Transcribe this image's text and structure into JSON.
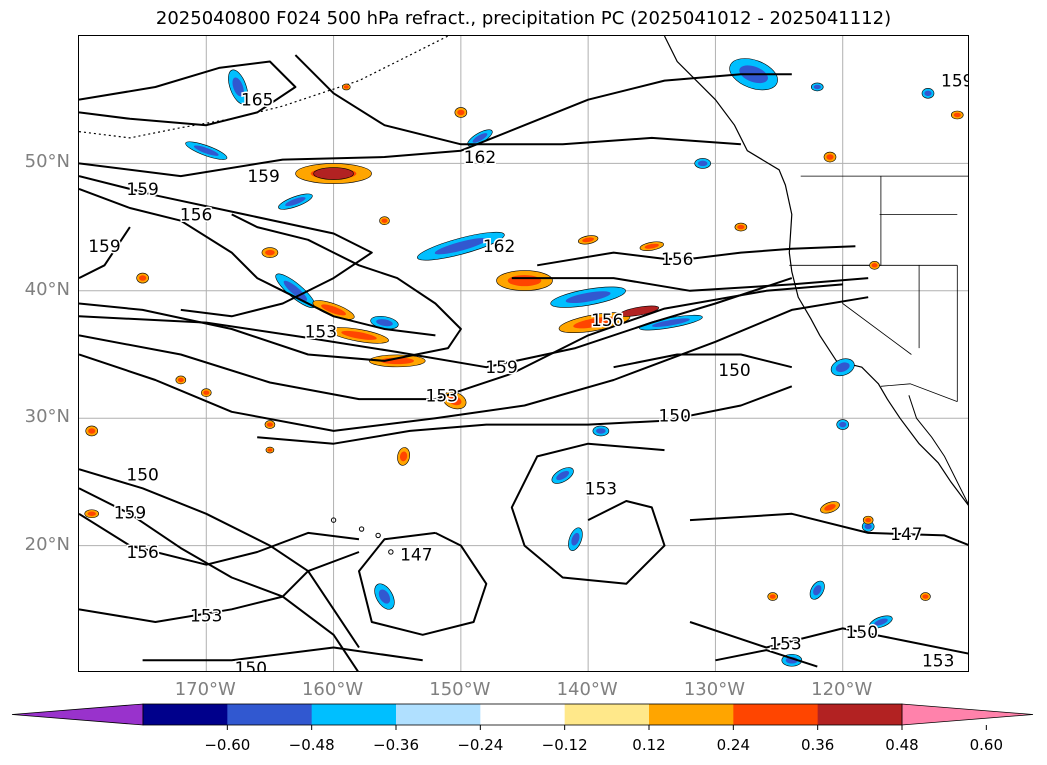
{
  "title": "2025040800 F024 500 hPa refract., precipitation PC (2025041012 - 2025041112)",
  "map": {
    "lon_range": [
      -180,
      -110
    ],
    "lat_range": [
      10,
      60
    ],
    "lat_gridlines": [
      20,
      30,
      40,
      50
    ],
    "lon_gridlines": [
      -170,
      -160,
      -150,
      -140,
      -130,
      -120
    ],
    "lat_labels": [
      "20°N",
      "30°N",
      "40°N",
      "50°N"
    ],
    "lon_labels": [
      "170°W",
      "160°W",
      "150°W",
      "140°W",
      "130°W",
      "120°W"
    ],
    "grid": true
  },
  "colorbar": {
    "levels": [
      -0.6,
      -0.48,
      -0.36,
      -0.24,
      -0.12,
      0.12,
      0.24,
      0.36,
      0.48,
      0.6
    ],
    "tick_labels": [
      "−0.60",
      "−0.48",
      "−0.36",
      "−0.24",
      "−0.12",
      "0.12",
      "0.24",
      "0.36",
      "0.48",
      "0.60"
    ],
    "colors": [
      "#9932cc",
      "#00008b",
      "#3158d0",
      "#00bfff",
      "#b0e0ff",
      "#ffffff",
      "#ffe88a",
      "#ffa500",
      "#ff4500",
      "#b22222",
      "#ff82ab"
    ],
    "extend": "both"
  },
  "contours": {
    "labels": [
      {
        "text": "165",
        "lon": -166.0,
        "lat": 55.0
      },
      {
        "text": "162",
        "lon": -148.5,
        "lat": 50.5
      },
      {
        "text": "162",
        "lon": -147.0,
        "lat": 43.5
      },
      {
        "text": "159",
        "lon": -175.0,
        "lat": 48.0
      },
      {
        "text": "159",
        "lon": -165.5,
        "lat": 49.0
      },
      {
        "text": "159",
        "lon": -178.0,
        "lat": 43.5
      },
      {
        "text": "156",
        "lon": -170.8,
        "lat": 46.0
      },
      {
        "text": "156",
        "lon": -133.0,
        "lat": 42.5
      },
      {
        "text": "156",
        "lon": -138.5,
        "lat": 37.7
      },
      {
        "text": "159",
        "lon": -146.8,
        "lat": 34.0
      },
      {
        "text": "153",
        "lon": -161.0,
        "lat": 36.8
      },
      {
        "text": "153",
        "lon": -151.5,
        "lat": 31.8
      },
      {
        "text": "150",
        "lon": -128.5,
        "lat": 33.8
      },
      {
        "text": "150",
        "lon": -133.2,
        "lat": 30.2
      },
      {
        "text": "150",
        "lon": -175.0,
        "lat": 25.6
      },
      {
        "text": "159",
        "lon": -176.0,
        "lat": 22.6
      },
      {
        "text": "156",
        "lon": -175.0,
        "lat": 19.5
      },
      {
        "text": "147",
        "lon": -153.5,
        "lat": 19.3
      },
      {
        "text": "153",
        "lon": -139.0,
        "lat": 24.5
      },
      {
        "text": "147",
        "lon": -115.0,
        "lat": 20.9
      },
      {
        "text": "153",
        "lon": -170.0,
        "lat": 14.5
      },
      {
        "text": "150",
        "lon": -166.5,
        "lat": 10.4
      },
      {
        "text": "153",
        "lon": -124.5,
        "lat": 12.3
      },
      {
        "text": "150",
        "lon": -118.5,
        "lat": 13.2
      },
      {
        "text": "153",
        "lon": -112.5,
        "lat": 11.0
      },
      {
        "text": "159",
        "lon": -111.0,
        "lat": 56.5
      }
    ]
  }
}
